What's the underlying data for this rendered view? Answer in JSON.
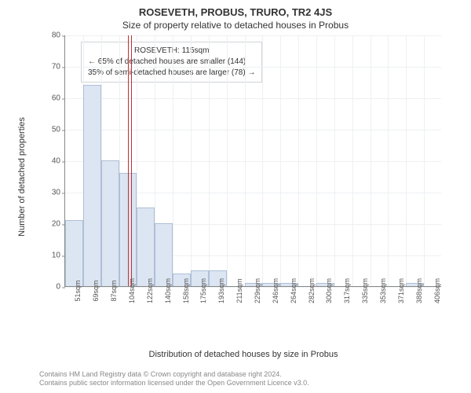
{
  "title": "ROSEVETH, PROBUS, TRURO, TR2 4JS",
  "subtitle": "Size of property relative to detached houses in Probus",
  "ylabel": "Number of detached properties",
  "xlabel": "Distribution of detached houses by size in Probus",
  "footnote_line1": "Contains HM Land Registry data © Crown copyright and database right 2024.",
  "footnote_line2": "Contains public sector information licensed under the Open Government Licence v3.0.",
  "annotation": {
    "line1": "ROSEVETH: 115sqm",
    "line2": "← 65% of detached houses are smaller (144)",
    "line3": "35% of semi-detached houses are larger (78) →"
  },
  "chart": {
    "type": "histogram",
    "ylim": [
      0,
      80
    ],
    "ytick_step": 10,
    "x_categories": [
      "51sqm",
      "69sqm",
      "87sqm",
      "104sqm",
      "122sqm",
      "140sqm",
      "158sqm",
      "175sqm",
      "193sqm",
      "211sqm",
      "229sqm",
      "246sqm",
      "264sqm",
      "282sqm",
      "300sqm",
      "317sqm",
      "335sqm",
      "353sqm",
      "371sqm",
      "388sqm",
      "406sqm"
    ],
    "values": [
      21,
      64,
      40,
      36,
      25,
      20,
      4,
      5,
      5,
      0,
      1,
      1,
      1,
      0,
      1,
      0,
      0,
      0,
      0,
      1,
      0
    ],
    "bar_fill": "#dce5f2",
    "bar_stroke": "#aebfd6",
    "grid_color": "#eef0f2",
    "axis_color": "#888888",
    "tick_font_color": "#555555",
    "background_color": "#ffffff",
    "bar_width_ratio": 1.0,
    "reference_index": 3.6,
    "refline_color": "#c03030"
  }
}
